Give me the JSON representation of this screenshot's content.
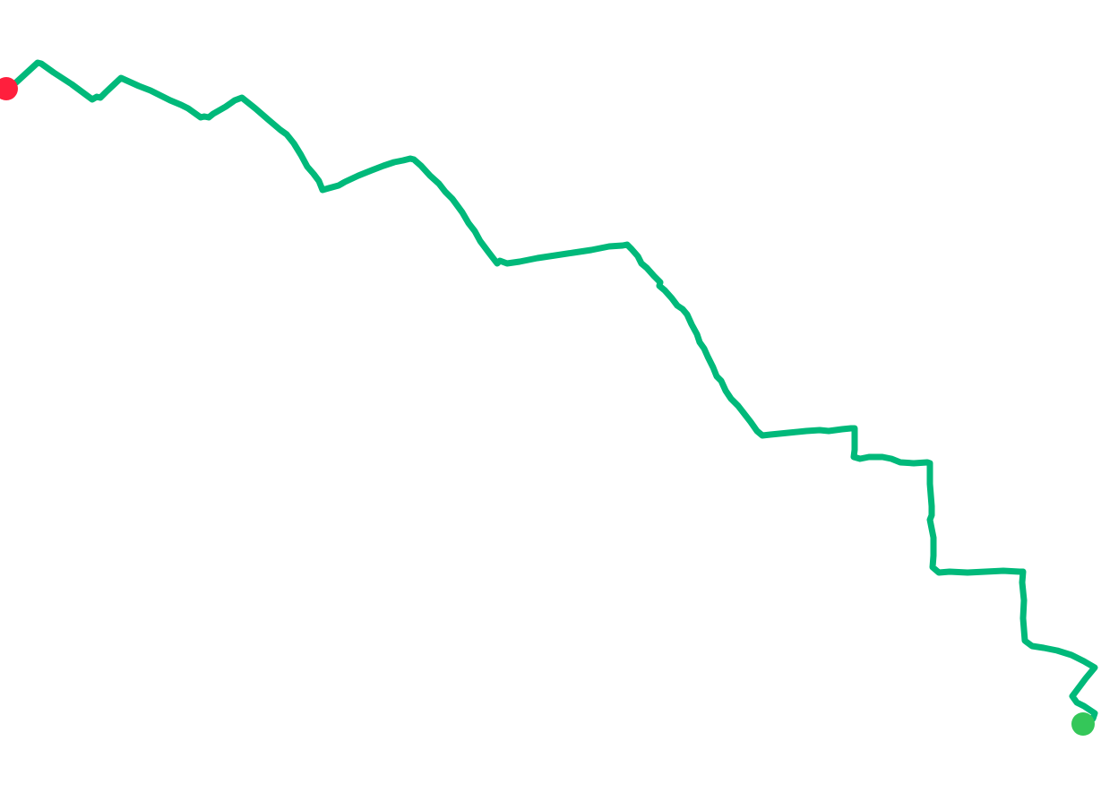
{
  "map": {
    "route": {
      "color": "#00b97a",
      "type": "gps-track"
    },
    "markers": {
      "start": {
        "icon": "start-marker-dot",
        "color": "#ff1f3d"
      },
      "end": {
        "icon": "end-marker-dot",
        "color": "#34c759"
      }
    }
  }
}
